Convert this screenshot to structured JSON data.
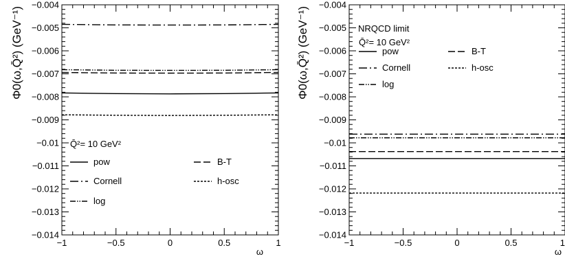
{
  "chart_data": [
    {
      "type": "line",
      "xlabel": "ω",
      "ylabel": "Φ0(ω,Q̄²) (GeV⁻¹)",
      "xlim": [
        -1,
        1
      ],
      "ylim": [
        -0.014,
        -0.004
      ],
      "x_ticks": [
        "−1",
        "−0.5",
        "0",
        "0.5",
        "1"
      ],
      "y_ticks": [
        "−0.004",
        "−0.005",
        "−0.006",
        "−0.007",
        "−0.008",
        "−0.009",
        "−0.01",
        "−0.011",
        "−0.012",
        "−0.013",
        "−0.014"
      ],
      "legend": {
        "header": "Q̄²= 10 GeV²",
        "placement": "bottom-left",
        "columns": 2,
        "entries": [
          {
            "label": "pow",
            "style": "solid"
          },
          {
            "label": "B-T",
            "style": "long-dash"
          },
          {
            "label": "Cornell",
            "style": "dash-dot"
          },
          {
            "label": "h-osc",
            "style": "dotted"
          },
          {
            "label": "log",
            "style": "dash-dot-dot"
          }
        ]
      },
      "grid": false,
      "series": [
        {
          "name": "Cornell",
          "style": "dash-dot",
          "x": [
            -1,
            -0.5,
            0,
            0.5,
            1
          ],
          "y": [
            -0.00485,
            -0.004875,
            -0.00488,
            -0.004875,
            -0.00485
          ]
        },
        {
          "name": "log",
          "style": "dash-dot-dot",
          "x": [
            -1,
            -0.5,
            0,
            0.5,
            1
          ],
          "y": [
            -0.00682,
            -0.006845,
            -0.00685,
            -0.006845,
            -0.00682
          ]
        },
        {
          "name": "B-T",
          "style": "long-dash",
          "x": [
            -1,
            -0.5,
            0,
            0.5,
            1
          ],
          "y": [
            -0.00694,
            -0.006965,
            -0.00697,
            -0.006965,
            -0.00694
          ]
        },
        {
          "name": "pow",
          "style": "solid",
          "x": [
            -1,
            -0.5,
            0,
            0.5,
            1
          ],
          "y": [
            -0.00783,
            -0.00786,
            -0.00787,
            -0.00786,
            -0.00783
          ]
        },
        {
          "name": "h-osc",
          "style": "dotted",
          "x": [
            -1,
            -0.5,
            0,
            0.5,
            1
          ],
          "y": [
            -0.00878,
            -0.0088,
            -0.00881,
            -0.0088,
            -0.00878
          ]
        }
      ]
    },
    {
      "type": "line",
      "xlabel": "ω",
      "ylabel": "Φ0(ω,Q̄²) (GeV⁻¹)",
      "xlim": [
        -1,
        1
      ],
      "ylim": [
        -0.014,
        -0.004
      ],
      "x_ticks": [
        "−1",
        "−0.5",
        "0",
        "0.5",
        "1"
      ],
      "y_ticks": [
        "−0.004",
        "−0.005",
        "−0.006",
        "−0.007",
        "−0.008",
        "−0.009",
        "−0.01",
        "−0.011",
        "−0.012",
        "−0.013",
        "−0.014"
      ],
      "annotation": "NRQCD limit",
      "legend": {
        "header": "Q̄²= 10 GeV²",
        "placement": "top-left",
        "columns": 2,
        "entries": [
          {
            "label": "pow",
            "style": "solid"
          },
          {
            "label": "B-T",
            "style": "long-dash"
          },
          {
            "label": "Cornell",
            "style": "dash-dot"
          },
          {
            "label": "h-osc",
            "style": "dotted"
          },
          {
            "label": "log",
            "style": "dash-dot-dot"
          }
        ]
      },
      "grid": false,
      "series": [
        {
          "name": "Cornell",
          "style": "dash-dot",
          "x": [
            -1,
            1
          ],
          "y": [
            -0.00962,
            -0.00962
          ]
        },
        {
          "name": "log",
          "style": "dash-dot-dot",
          "x": [
            -1,
            1
          ],
          "y": [
            -0.00978,
            -0.00978
          ]
        },
        {
          "name": "B-T",
          "style": "long-dash",
          "x": [
            -1,
            1
          ],
          "y": [
            -0.01038,
            -0.01038
          ]
        },
        {
          "name": "pow",
          "style": "solid",
          "x": [
            -1,
            1
          ],
          "y": [
            -0.01068,
            -0.01068
          ]
        },
        {
          "name": "h-osc",
          "style": "dotted",
          "x": [
            -1,
            1
          ],
          "y": [
            -0.01218,
            -0.01218
          ]
        }
      ]
    }
  ]
}
